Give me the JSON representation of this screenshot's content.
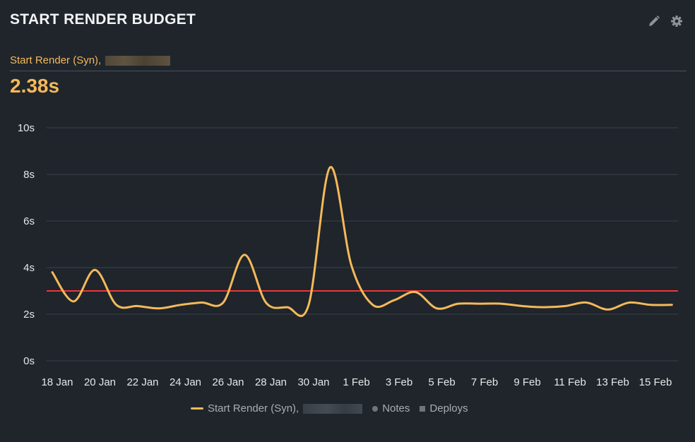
{
  "header": {
    "title": "START RENDER BUDGET",
    "edit_icon": "pencil-icon",
    "settings_icon": "gear-icon"
  },
  "metric": {
    "label": "Start Render (Syn),",
    "value": "2.38s",
    "color": "#f6b95a"
  },
  "legend": {
    "series_label": "Start Render (Syn),",
    "notes_label": "Notes",
    "deploys_label": "Deploys"
  },
  "colors": {
    "background": "#1f252b",
    "series": "#f6b95a",
    "budget": "#e5383b",
    "grid": "#3a4148"
  },
  "chart_data": {
    "type": "line",
    "title": "START RENDER BUDGET",
    "xlabel": "",
    "ylabel": "",
    "ylim": [
      0,
      10
    ],
    "y_ticks": [
      "0s",
      "2s",
      "4s",
      "6s",
      "8s",
      "10s"
    ],
    "x_ticks": [
      "18 Jan",
      "20 Jan",
      "22 Jan",
      "24 Jan",
      "26 Jan",
      "28 Jan",
      "30 Jan",
      "1 Feb",
      "3 Feb",
      "5 Feb",
      "7 Feb",
      "9 Feb",
      "11 Feb",
      "13 Feb",
      "15 Feb"
    ],
    "grid": true,
    "legend_position": "bottom",
    "budget_line": 3,
    "series": [
      {
        "name": "Start Render (Syn)",
        "x": [
          "18 Jan",
          "19 Jan",
          "20 Jan",
          "21 Jan",
          "22 Jan",
          "23 Jan",
          "24 Jan",
          "25 Jan",
          "26 Jan",
          "27 Jan",
          "28 Jan",
          "29 Jan",
          "30 Jan",
          "31 Jan",
          "1 Feb",
          "2 Feb",
          "3 Feb",
          "4 Feb",
          "5 Feb",
          "6 Feb",
          "7 Feb",
          "8 Feb",
          "9 Feb",
          "10 Feb",
          "11 Feb",
          "12 Feb",
          "13 Feb",
          "14 Feb",
          "15 Feb",
          "16 Feb"
        ],
        "values": [
          3.8,
          2.55,
          3.9,
          2.4,
          2.35,
          2.25,
          2.4,
          2.5,
          2.5,
          4.55,
          2.5,
          2.3,
          2.4,
          8.3,
          4.1,
          2.4,
          2.6,
          2.95,
          2.25,
          2.45,
          2.45,
          2.45,
          2.35,
          2.3,
          2.35,
          2.5,
          2.2,
          2.5,
          2.4,
          2.4
        ]
      }
    ]
  }
}
